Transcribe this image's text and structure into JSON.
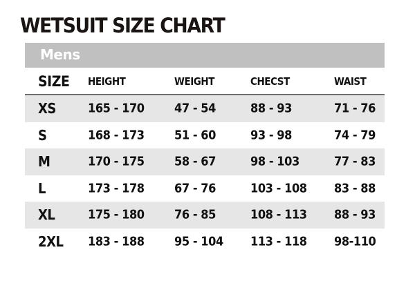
{
  "title": "WETSUIT SIZE CHART",
  "section": "Mens",
  "columns": [
    "SIZE",
    "HEIGHT",
    "WEIGHT",
    "CHECST",
    "WAIST"
  ],
  "rows": [
    [
      "XS",
      "165 - 170",
      "47 - 54",
      "88 - 93",
      "71 - 76"
    ],
    [
      "S",
      "168 - 173",
      "51 - 60",
      "93 - 98",
      "74 - 79"
    ],
    [
      "M",
      "170 - 175",
      "58 - 67",
      "98 - 103",
      "77 - 83"
    ],
    [
      "L",
      "173 - 178",
      "67 - 76",
      "103 - 108",
      "83 - 88"
    ],
    [
      "XL",
      "175 - 180",
      "76 - 85",
      "108 - 113",
      "88 - 93"
    ],
    [
      "2XL",
      "183 - 188",
      "95 - 104",
      "113 - 118",
      "98-110"
    ]
  ],
  "colors": {
    "section_bar": "#c0c0c0",
    "row_shade": "#e6e6e6",
    "text": "#111111"
  }
}
